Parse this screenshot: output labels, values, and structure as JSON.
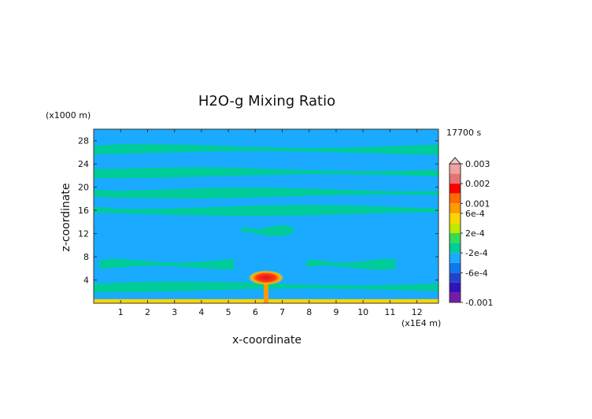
{
  "chart_data": {
    "type": "heatmap",
    "title": "H2O-g Mixing Ratio",
    "time_label": "17700 s",
    "xlabel": "x-coordinate",
    "ylabel": "z-coordinate",
    "x_scale_label": "(x1E4 m)",
    "y_scale_label": "(x1000 m)",
    "xlim": [
      0,
      12.8
    ],
    "ylim": [
      0,
      30
    ],
    "x_ticks": [
      "1",
      "2",
      "3",
      "4",
      "5",
      "6",
      "7",
      "8",
      "9",
      "10",
      "11",
      "12"
    ],
    "y_ticks": [
      "4",
      "8",
      "12",
      "16",
      "20",
      "24",
      "28"
    ],
    "colorbar": {
      "labels": [
        "0.003",
        "0.002",
        "0.001",
        "6e-4",
        "2e-4",
        "-2e-4",
        "-6e-4",
        "-0.001"
      ],
      "levels": [
        0.003,
        0.002,
        0.001,
        0.0006,
        0.0002,
        -0.0002,
        -0.0006,
        -0.001
      ],
      "colors": [
        "#f2a0a0",
        "#e57373",
        "#ff0000",
        "#ff6a00",
        "#ff9a00",
        "#ffd400",
        "#bfe800",
        "#33dd55",
        "#00cc99",
        "#1aaaff",
        "#1177ee",
        "#2244cc",
        "#3311bb",
        "#7a1aa8"
      ]
    },
    "field": {
      "background_value": -0.0001,
      "background_color": "#1aaaff",
      "bands": [
        {
          "z": 2.8,
          "value": 0.0001,
          "extent": [
            0,
            12.8
          ]
        },
        {
          "z": 6.7,
          "value": 0.0001,
          "extent": [
            0.2,
            5.2
          ]
        },
        {
          "z": 6.7,
          "value": 0.0001,
          "extent": [
            7.9,
            11.2
          ]
        },
        {
          "z": 12.5,
          "value": 0.0001,
          "extent": [
            5.5,
            7.4
          ]
        },
        {
          "z": 16.0,
          "value": 0.0001,
          "extent": [
            0,
            12.8
          ]
        },
        {
          "z": 19.0,
          "value": 0.0001,
          "extent": [
            0,
            12.8
          ]
        },
        {
          "z": 22.5,
          "value": 0.0001,
          "extent": [
            0,
            12.8
          ]
        },
        {
          "z": 26.5,
          "value": 0.0001,
          "extent": [
            0,
            12.8
          ]
        }
      ],
      "surface_layer": {
        "z_top": 0.7,
        "value": 0.0008
      },
      "plume": {
        "x": 6.4,
        "z_center": 4.4,
        "peak_value": 0.002
      }
    }
  }
}
